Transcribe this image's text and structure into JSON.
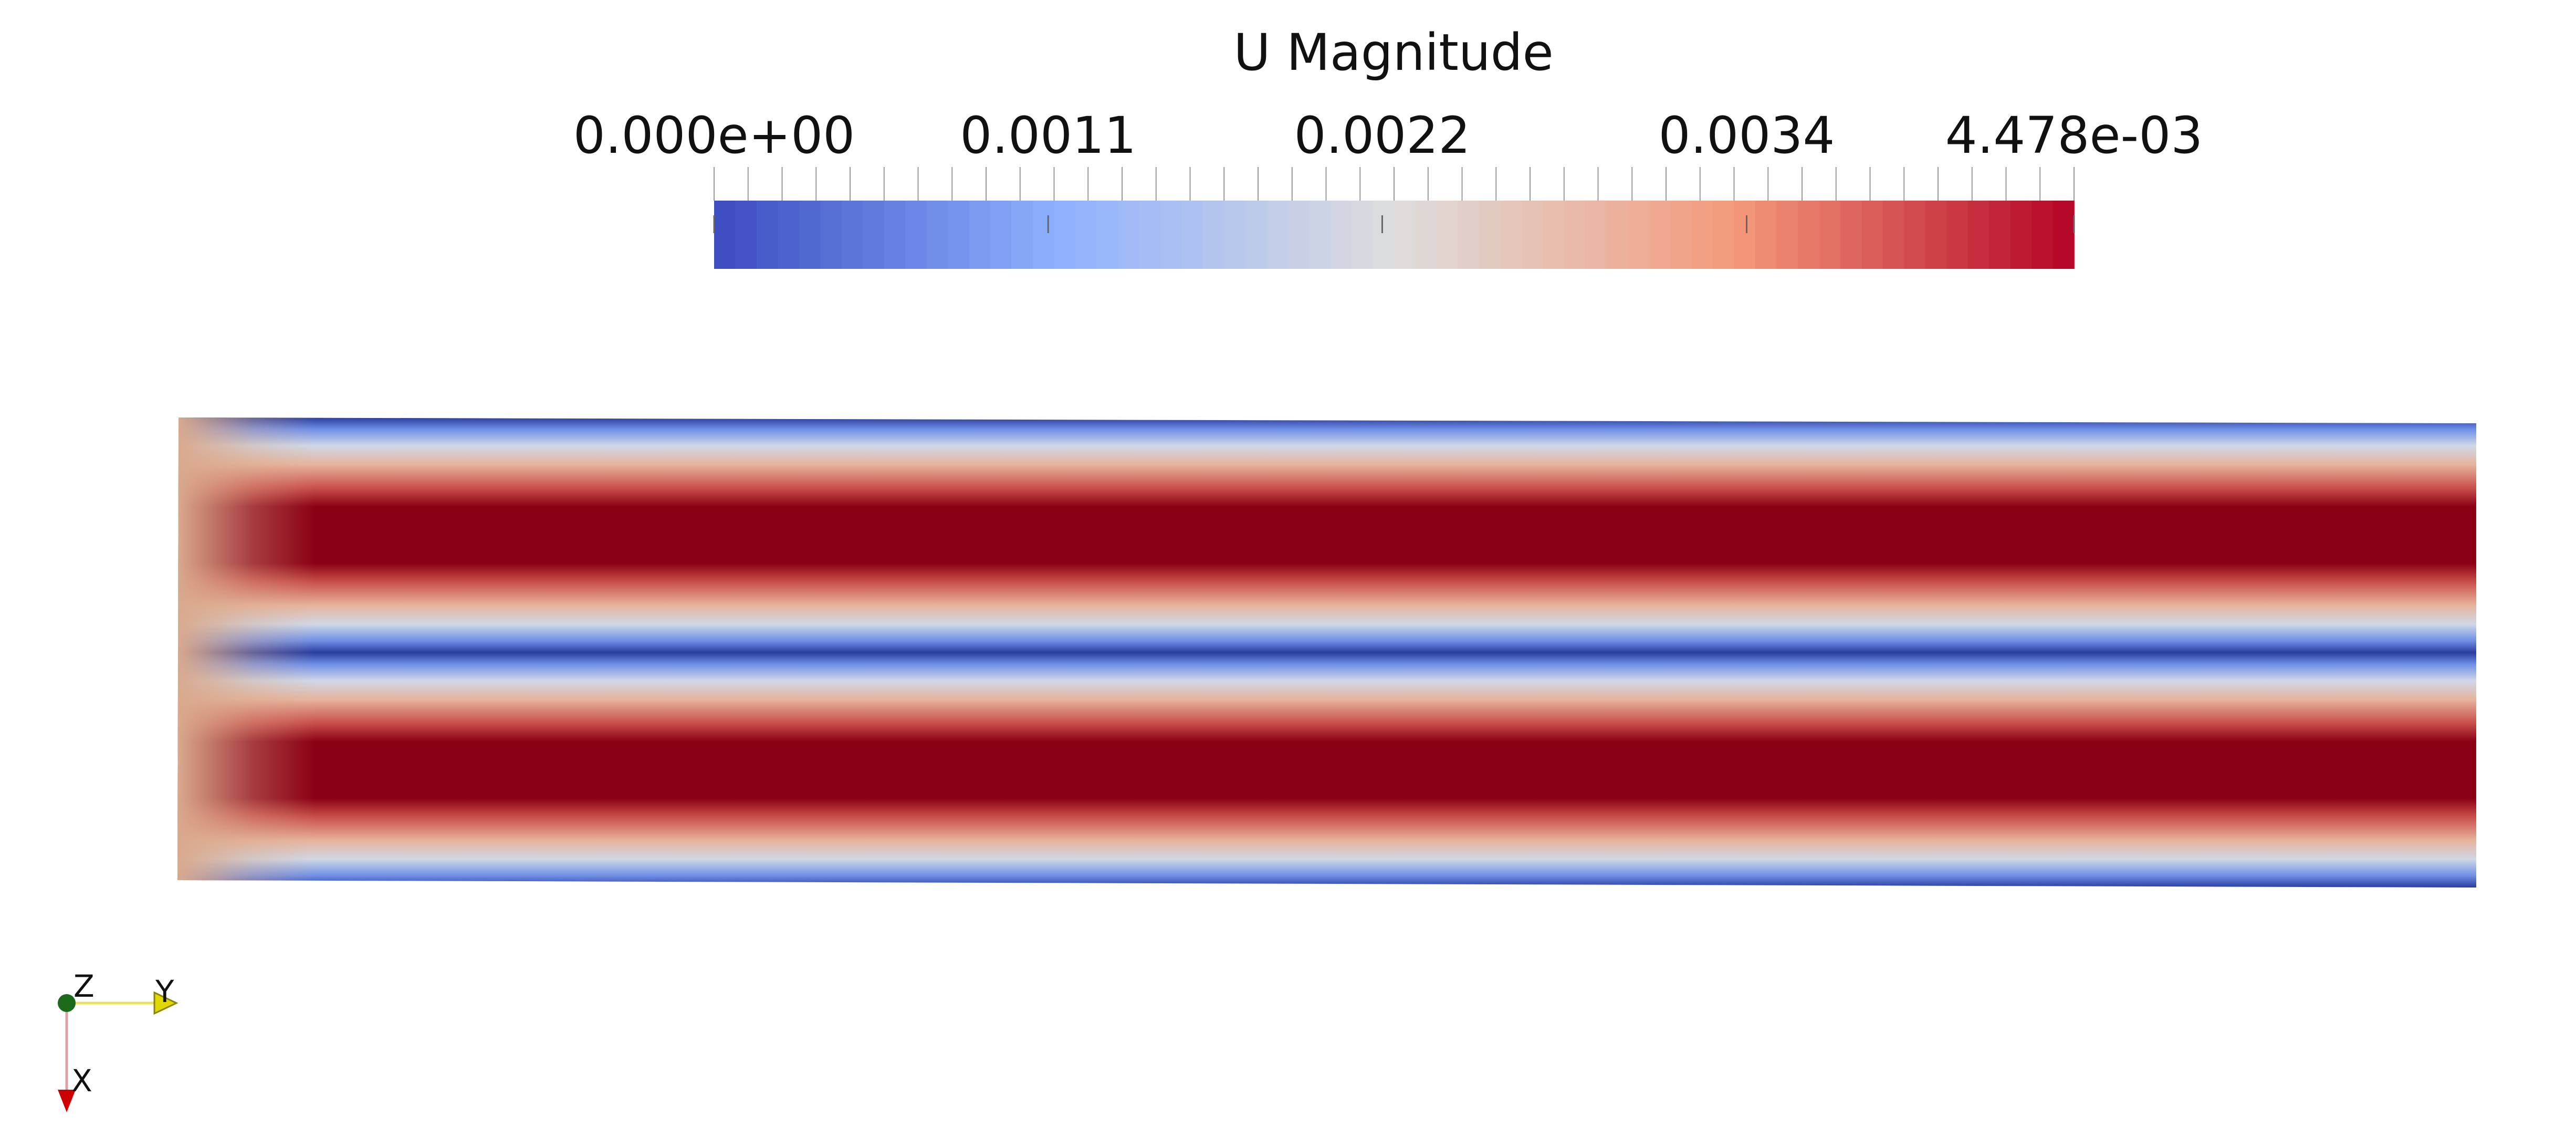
{
  "scalar_bar": {
    "title": "U Magnitude",
    "range": [
      0,
      0.004478
    ],
    "labels": [
      {
        "text": "0.000e+00",
        "value": 0
      },
      {
        "text": "0.0011",
        "value": 0.0011
      },
      {
        "text": "0.0022",
        "value": 0.0022
      },
      {
        "text": "0.0034",
        "value": 0.0034
      },
      {
        "text": "4.478e-03",
        "value": 0.004478
      }
    ],
    "colormap": "Cool to Warm",
    "colormap_stops": [
      "#3b4cc0",
      "#8db0fe",
      "#dddddd",
      "#f49a7b",
      "#b40426"
    ],
    "color_bands": 64
  },
  "render": {
    "field": "U Magnitude",
    "channels": 2,
    "max_color": "#8b0015",
    "wall_color": "#2a3d9e"
  },
  "orientation_axes": {
    "axes": [
      {
        "label": "Z",
        "color": "#1b6b1b"
      },
      {
        "label": "Y",
        "color": "#e0d800"
      },
      {
        "label": "X",
        "color": "#cc0000"
      }
    ]
  }
}
